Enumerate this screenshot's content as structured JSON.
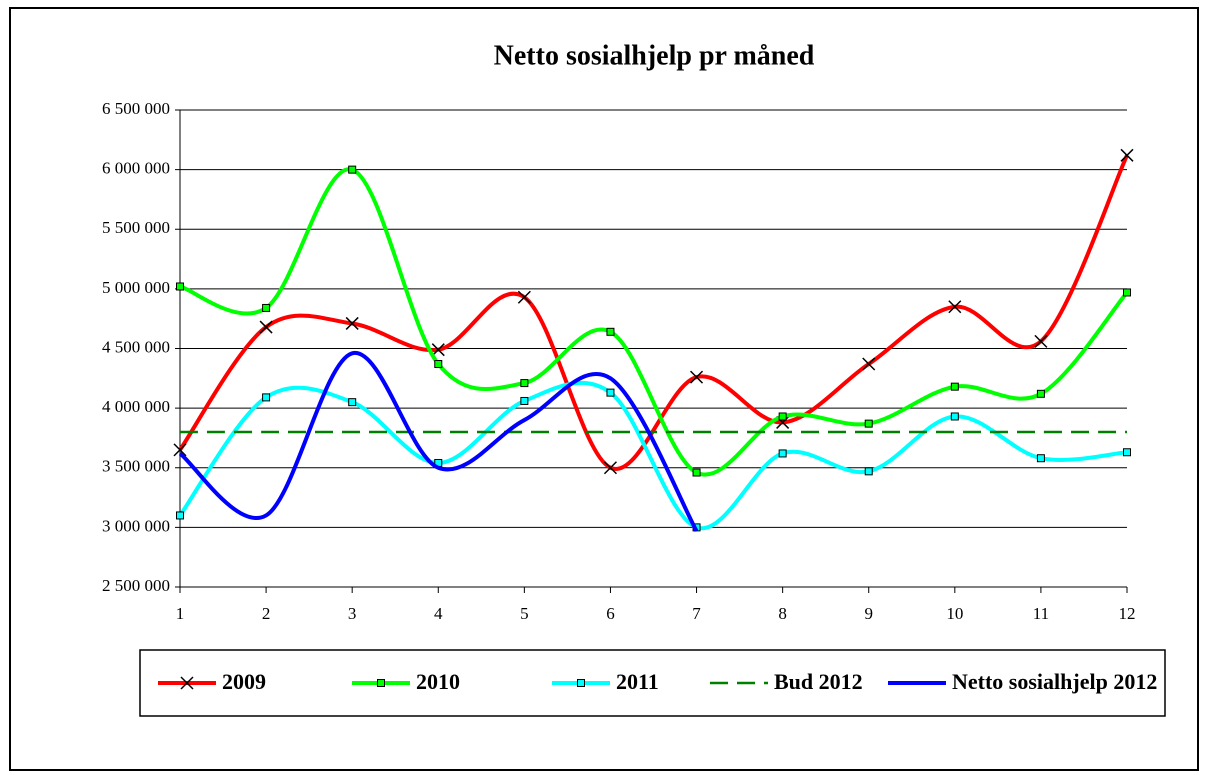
{
  "chart_data": {
    "type": "line",
    "title": "Netto sosialhjelp pr måned",
    "x": [
      1,
      2,
      3,
      4,
      5,
      6,
      7,
      8,
      9,
      10,
      11,
      12
    ],
    "xlim": [
      1,
      12
    ],
    "xticks": [
      1,
      2,
      3,
      4,
      5,
      6,
      7,
      8,
      9,
      10,
      11,
      12
    ],
    "ylim": [
      2500000,
      6500000
    ],
    "yticks": [
      {
        "value": 2500000,
        "label": "2 500 000"
      },
      {
        "value": 3000000,
        "label": "3 000 000"
      },
      {
        "value": 3500000,
        "label": "3 500 000"
      },
      {
        "value": 4000000,
        "label": "4 000 000"
      },
      {
        "value": 4500000,
        "label": "4 500 000"
      },
      {
        "value": 5000000,
        "label": "5 000 000"
      },
      {
        "value": 5500000,
        "label": "5 500 000"
      },
      {
        "value": 6000000,
        "label": "6 000 000"
      },
      {
        "value": 6500000,
        "label": "6 500 000"
      }
    ],
    "grid": true,
    "legend": "bottom",
    "series": [
      {
        "name": "2009",
        "color": "#ff0000",
        "marker": "x",
        "values": [
          3650000,
          4680000,
          4710000,
          4490000,
          4930000,
          3500000,
          4260000,
          3880000,
          4370000,
          4850000,
          4560000,
          6120000
        ]
      },
      {
        "name": "2010",
        "color": "#00ff00",
        "marker": "square",
        "values": [
          5020000,
          4840000,
          6000000,
          4370000,
          4210000,
          4640000,
          3460000,
          3930000,
          3870000,
          4180000,
          4120000,
          4970000
        ]
      },
      {
        "name": "2011",
        "color": "#00ffff",
        "marker": "square",
        "values": [
          3100000,
          4090000,
          4050000,
          3540000,
          4060000,
          4130000,
          3000000,
          3620000,
          3470000,
          3930000,
          3580000,
          3630000
        ]
      },
      {
        "name": "Bud 2012",
        "color": "#008000",
        "dashed": true,
        "values": [
          3800000,
          3800000,
          3800000,
          3800000,
          3800000,
          3800000,
          3800000,
          3800000,
          3800000,
          3800000,
          3800000,
          3800000
        ]
      },
      {
        "name": "Netto sosialhjelp 2012",
        "color": "#0000ff",
        "values": [
          3620000,
          3100000,
          4460000,
          3500000,
          3900000,
          4250000,
          2970000,
          null,
          null,
          null,
          null,
          null
        ]
      }
    ]
  }
}
